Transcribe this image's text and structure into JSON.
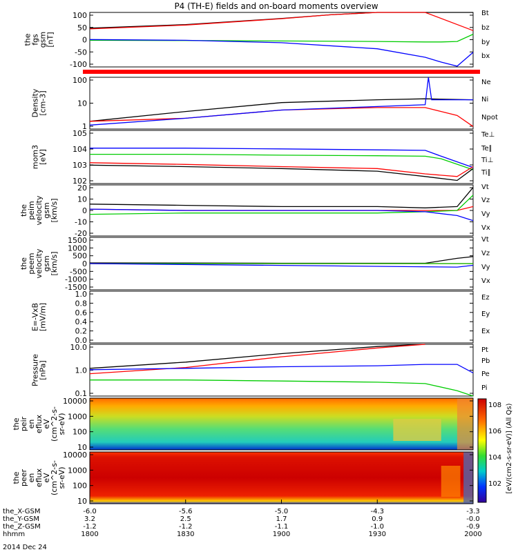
{
  "title": "P4 (TH-E) fields and on-board moments overview",
  "date_label": "2014 Dec 24",
  "colors": {
    "black": "#000000",
    "red": "#ff0000",
    "green": "#00cc00",
    "blue": "#0000ff"
  },
  "chart_data": [
    {
      "type": "line",
      "id": "fgs",
      "ylabel": [
        "the",
        "fgs",
        "gsm",
        "[nT]"
      ],
      "ylim": [
        -115,
        110
      ],
      "yticks": [
        "100",
        "50",
        "0",
        "-50",
        "-100"
      ],
      "legend": [
        {
          "label": "Bt",
          "color": "black"
        },
        {
          "label": "bz",
          "color": "red"
        },
        {
          "label": "by",
          "color": "green"
        },
        {
          "label": "bx",
          "color": "blue"
        }
      ],
      "series": [
        {
          "name": "Bt",
          "color": "black",
          "x": [
            1800,
            1830,
            1900,
            1915,
            1930,
            1945,
            2000
          ],
          "y": [
            45,
            60,
            85,
            100,
            115,
            130,
            115
          ]
        },
        {
          "name": "bz",
          "color": "red",
          "x": [
            1800,
            1830,
            1900,
            1915,
            1930,
            1945,
            2000
          ],
          "y": [
            42,
            58,
            84,
            100,
            113,
            125,
            35
          ]
        },
        {
          "name": "by",
          "color": "green",
          "x": [
            1800,
            1830,
            1900,
            1930,
            1945,
            1950,
            1955,
            2000
          ],
          "y": [
            -5,
            -6,
            -8,
            -10,
            -12,
            -12,
            -10,
            20
          ]
        },
        {
          "name": "bx",
          "color": "blue",
          "x": [
            1800,
            1830,
            1900,
            1930,
            1945,
            1950,
            1955,
            2000
          ],
          "y": [
            -2,
            -5,
            -15,
            -40,
            -75,
            -95,
            -112,
            -55
          ]
        }
      ]
    },
    {
      "type": "line",
      "id": "density",
      "ylabel": [
        "Density",
        "[cm-3]"
      ],
      "log": true,
      "ylim": [
        1,
        200
      ],
      "yticks": [
        "100",
        "10",
        "1"
      ],
      "legend": [
        {
          "label": "Ne",
          "color": "red"
        },
        {
          "label": "Ni",
          "color": "black"
        },
        {
          "label": "Npot",
          "color": "blue"
        }
      ],
      "series": [
        {
          "name": "Ni",
          "color": "black",
          "x": [
            1800,
            1830,
            1900,
            1930,
            1945,
            2000
          ],
          "y": [
            2.2,
            6,
            15,
            20,
            22,
            20
          ]
        },
        {
          "name": "Ne",
          "color": "red",
          "x": [
            1800,
            1830,
            1900,
            1930,
            1945,
            1950,
            1955,
            2000
          ],
          "y": [
            2.2,
            3,
            7,
            9,
            9,
            6,
            4,
            1.3
          ]
        },
        {
          "name": "Npot",
          "color": "blue",
          "x": [
            1800,
            1830,
            1900,
            1930,
            1945,
            1946,
            1947,
            2000
          ],
          "y": [
            1.5,
            3,
            7,
            10,
            12,
            200,
            20,
            20
          ]
        }
      ]
    },
    {
      "type": "line",
      "id": "temp",
      "ylabel": [
        "mom3",
        "[eV]"
      ],
      "log": true,
      "ylim": [
        100,
        100000
      ],
      "yticks": [
        "10^5",
        "10^4",
        "10^3",
        "10^2"
      ],
      "legend": [
        {
          "label": "Te⊥",
          "color": "red"
        },
        {
          "label": "Te∥",
          "color": "black"
        },
        {
          "label": "Ti⊥",
          "color": "blue"
        },
        {
          "label": "Ti∥",
          "color": "green"
        }
      ],
      "series": [
        {
          "name": "Ti⊥",
          "color": "blue",
          "x": [
            1800,
            1830,
            1900,
            1930,
            1945,
            1950,
            2000
          ],
          "y": [
            10000,
            10000,
            9000,
            8000,
            7500,
            3500,
            800
          ]
        },
        {
          "name": "Ti∥",
          "color": "green",
          "x": [
            1800,
            1830,
            1900,
            1930,
            1945,
            1950,
            2000
          ],
          "y": [
            4500,
            4500,
            4000,
            3700,
            3500,
            2500,
            600
          ]
        },
        {
          "name": "Te⊥",
          "color": "red",
          "x": [
            1800,
            1830,
            1900,
            1930,
            1945,
            1955,
            2000
          ],
          "y": [
            1500,
            1200,
            900,
            700,
            350,
            250,
            900
          ]
        },
        {
          "name": "Te∥",
          "color": "black",
          "x": [
            1800,
            1830,
            1900,
            1930,
            1945,
            1955,
            2000
          ],
          "y": [
            1100,
            900,
            700,
            500,
            250,
            150,
            700
          ]
        }
      ]
    },
    {
      "type": "line",
      "id": "peim",
      "ylabel": [
        "the",
        "peim",
        "velocity",
        "gsm",
        "[km/s]"
      ],
      "ylim": [
        -20,
        20
      ],
      "yticks": [
        "20",
        "10",
        "0",
        "-10",
        "-20"
      ],
      "legend": [
        {
          "label": "Vt",
          "color": "black"
        },
        {
          "label": "Vz",
          "color": "red"
        },
        {
          "label": "Vy",
          "color": "green"
        },
        {
          "label": "Vx",
          "color": "blue"
        }
      ],
      "series": [
        {
          "name": "Vt",
          "color": "black",
          "x": [
            1800,
            1830,
            1900,
            1930,
            1945,
            1955,
            2000
          ],
          "y": [
            5,
            4,
            3,
            3,
            2,
            3,
            18
          ]
        },
        {
          "name": "Vz",
          "color": "red",
          "x": [
            1800,
            1830,
            1900,
            1930,
            1945,
            1955,
            2000
          ],
          "y": [
            1,
            0,
            0,
            0,
            0,
            0,
            3
          ]
        },
        {
          "name": "Vy",
          "color": "green",
          "x": [
            1800,
            1830,
            1900,
            1930,
            1945,
            1955,
            2000
          ],
          "y": [
            -3,
            -2,
            -2,
            -2,
            -1,
            0,
            12
          ]
        },
        {
          "name": "Vx",
          "color": "blue",
          "x": [
            1800,
            1830,
            1900,
            1930,
            1945,
            1955,
            2000
          ],
          "y": [
            1,
            0,
            0,
            0,
            -1,
            -4,
            -8
          ]
        }
      ]
    },
    {
      "type": "line",
      "id": "peem",
      "ylabel": [
        "the",
        "peem",
        "velocity",
        "gsm",
        "[km/s]"
      ],
      "ylim": [
        -1500,
        1500
      ],
      "yticks": [
        "1500",
        "1000",
        "500",
        "0",
        "-500",
        "-1000",
        "-1500"
      ],
      "legend": [
        {
          "label": "Vt",
          "color": "black"
        },
        {
          "label": "Vz",
          "color": "red"
        },
        {
          "label": "Vy",
          "color": "green"
        },
        {
          "label": "Vx",
          "color": "blue"
        }
      ],
      "series": [
        {
          "name": "Vt",
          "color": "black",
          "x": [
            1800,
            1830,
            1900,
            1930,
            1945,
            1955,
            2000
          ],
          "y": [
            40,
            30,
            20,
            20,
            20,
            300,
            400
          ]
        },
        {
          "name": "Vz",
          "color": "red",
          "x": [
            1800,
            2000
          ],
          "y": [
            0,
            0
          ]
        },
        {
          "name": "Vy",
          "color": "green",
          "x": [
            1800,
            2000
          ],
          "y": [
            0,
            0
          ]
        },
        {
          "name": "Vx",
          "color": "blue",
          "x": [
            1800,
            1955,
            2000
          ],
          "y": [
            0,
            -200,
            -100
          ]
        }
      ]
    },
    {
      "type": "line",
      "id": "efield",
      "ylabel": [
        "E=-VxB",
        "[mV/m]"
      ],
      "ylim": [
        0,
        1
      ],
      "yticks": [
        "1.0",
        "0.8",
        "0.6",
        "0.4",
        "0.2",
        "0.0"
      ],
      "legend": [
        {
          "label": "Ez",
          "color": "red"
        },
        {
          "label": "Ey",
          "color": "green"
        },
        {
          "label": "Ex",
          "color": "blue"
        }
      ],
      "series": []
    },
    {
      "type": "line",
      "id": "pressure",
      "ylabel": [
        "Pressure",
        "[nPa]"
      ],
      "log": true,
      "ylim": [
        0.05,
        40
      ],
      "yticks": [
        "10.0",
        "1.0",
        "0.1"
      ],
      "legend": [
        {
          "label": "Pt",
          "color": "black"
        },
        {
          "label": "Pb",
          "color": "red"
        },
        {
          "label": "Pe",
          "color": "green"
        },
        {
          "label": "Pi",
          "color": "blue"
        }
      ],
      "series": [
        {
          "name": "Pt",
          "color": "black",
          "x": [
            1800,
            1830,
            1900,
            1930,
            1945
          ],
          "y": [
            1.8,
            4,
            12,
            30,
            45
          ]
        },
        {
          "name": "Pb",
          "color": "red",
          "x": [
            1800,
            1830,
            1900,
            1930,
            1945
          ],
          "y": [
            0.9,
            2,
            8,
            25,
            45
          ]
        },
        {
          "name": "Pi",
          "color": "blue",
          "x": [
            1800,
            1830,
            1900,
            1930,
            1945,
            1955,
            2000
          ],
          "y": [
            1.5,
            1.8,
            2.2,
            2.5,
            3,
            3,
            1.0
          ]
        },
        {
          "name": "Pe",
          "color": "green",
          "x": [
            1800,
            1830,
            1900,
            1930,
            1945,
            1955,
            2000
          ],
          "y": [
            0.4,
            0.4,
            0.35,
            0.3,
            0.25,
            0.1,
            0.05
          ]
        }
      ]
    },
    {
      "type": "heatmap",
      "id": "peir",
      "ylabel": [
        "the",
        "peir",
        "en",
        "eflux",
        "eV",
        "(cm^2-s-",
        "sr-eV)"
      ],
      "yticks": [
        "10000",
        "1000",
        "100",
        "10"
      ]
    },
    {
      "type": "heatmap",
      "id": "peer",
      "ylabel": [
        "the",
        "peer",
        "en",
        "eflux",
        "eV",
        "(cm^2-s-",
        "sr-eV)"
      ],
      "yticks": [
        "10000",
        "1000",
        "100",
        "10"
      ]
    }
  ],
  "colorbar": {
    "label": "[eV/(cm2-s-sr-eV)] (All Qs)",
    "ticks": [
      "10^8",
      "10^6",
      "10^4",
      "10^2"
    ]
  },
  "xaxis": {
    "ticks": [
      "1800",
      "1830",
      "1900",
      "1930",
      "2000"
    ],
    "rows": [
      {
        "label": "the_X-GSM",
        "values": [
          "-6.0",
          "-5.6",
          "-5.0",
          "-4.3",
          "-3.3"
        ]
      },
      {
        "label": "the_Y-GSM",
        "values": [
          "3.2",
          "2.5",
          "1.7",
          "0.9",
          "-0.0"
        ]
      },
      {
        "label": "the_Z-GSM",
        "values": [
          "-1.2",
          "-1.2",
          "-1.1",
          "-1.0",
          "-0.9"
        ]
      },
      {
        "label": "hhmm",
        "values": [
          "1800",
          "1830",
          "1900",
          "1930",
          "2000"
        ]
      }
    ]
  }
}
